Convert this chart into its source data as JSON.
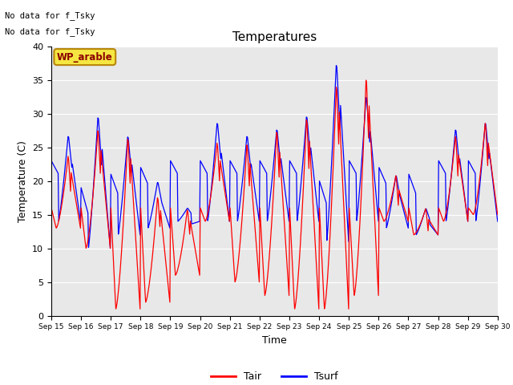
{
  "title": "Temperatures",
  "xlabel": "Time",
  "ylabel": "Temperature (C)",
  "ylim": [
    0,
    40
  ],
  "bg_color": "#e8e8e8",
  "annotation_text1": "No data for f_Tsky",
  "annotation_text2": "No data for f_Tsky",
  "wp_label": "WP_arable",
  "legend": [
    "Tair",
    "Tsurf"
  ],
  "x_tick_labels": [
    "Sep 15",
    "Sep 16",
    "Sep 17",
    "Sep 18",
    "Sep 19",
    "Sep 20",
    "Sep 21",
    "Sep 22",
    "Sep 23",
    "Sep 24",
    "Sep 25",
    "Sep 26",
    "Sep 27",
    "Sep 28",
    "Sep 29",
    "Sep 30"
  ],
  "figsize": [
    6.4,
    4.8
  ],
  "dpi": 100
}
